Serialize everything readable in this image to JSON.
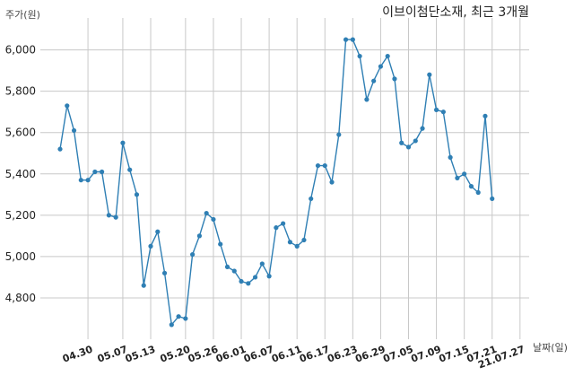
{
  "chart_data": {
    "type": "line",
    "title": "이브이첨단소재, 최근 3개월",
    "ylabel": "주가(원)",
    "xlabel": "날짜(일)",
    "ylim": [
      4600,
      6120
    ],
    "yticks": [
      4800,
      5000,
      5200,
      5400,
      5600,
      5800,
      6000
    ],
    "ytick_labels": [
      "4,800",
      "5,000",
      "5,200",
      "5,400",
      "5,600",
      "5,800",
      "6,000"
    ],
    "xtick_labels": [
      "04.30",
      "05.07",
      "05.13",
      "05.20",
      "05.26",
      "06.01",
      "06.07",
      "06.11",
      "06.17",
      "06.23",
      "06.29",
      "07.05",
      "07.09",
      "07.15",
      "07.21",
      "21.07.27"
    ],
    "xtick_index": [
      4,
      9,
      13,
      18,
      22,
      26,
      30,
      34,
      38,
      42,
      46,
      50,
      54,
      58,
      62,
      66
    ],
    "grid": true,
    "line_color": "#2f7fb4",
    "series": [
      {
        "values": [
          5520,
          5730,
          5610,
          5370,
          5370,
          5410,
          5410,
          5200,
          5190,
          5550,
          5420,
          5300,
          4860,
          5050,
          5120,
          4920,
          4670,
          4710,
          4700,
          5010,
          5100,
          5210,
          5180,
          5060,
          4950,
          4930,
          4880,
          4870,
          4900,
          4965,
          4905,
          5140,
          5160,
          5070,
          5050,
          5080,
          5280,
          5440,
          5440,
          5360,
          5590,
          6050,
          6050,
          5970,
          5760,
          5850,
          5920,
          5970,
          5860,
          5550,
          5530,
          5560,
          5620,
          5880,
          5710,
          5700,
          5480,
          5380,
          5400,
          5340,
          5310,
          5680,
          5280
        ]
      }
    ]
  }
}
